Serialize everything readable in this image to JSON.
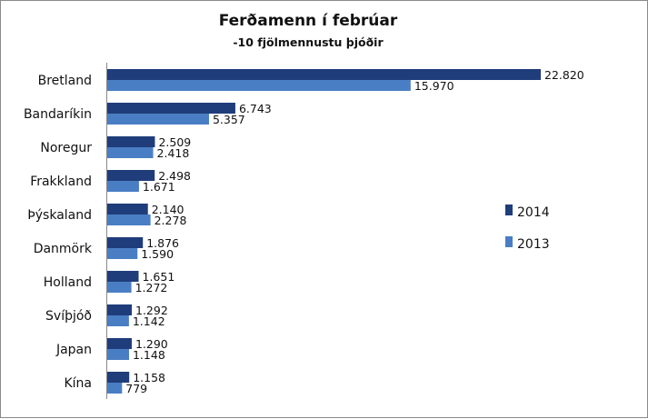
{
  "chart_data": {
    "type": "bar",
    "orientation": "horizontal",
    "title": "Ferðamenn í febrúar",
    "subtitle": "-10 fjölmennustu þjóðir",
    "xlabel": "",
    "ylabel": "",
    "xlim": [
      0,
      25000
    ],
    "grid": false,
    "legend_position": "right",
    "categories": [
      "Bretland",
      "Bandaríkin",
      "Noregur",
      "Frakkland",
      "Þýskaland",
      "Danmörk",
      "Holland",
      "Svíþjóð",
      "Japan",
      "Kína"
    ],
    "series": [
      {
        "name": "2014",
        "color": "#1f3d7a",
        "values": [
          22820,
          6743,
          2509,
          2498,
          2140,
          1876,
          1651,
          1292,
          1290,
          1158
        ],
        "labels": [
          "22.820",
          "6.743",
          "2.509",
          "2.498",
          "2.140",
          "1.876",
          "1.651",
          "1.292",
          "1.290",
          "1.158"
        ]
      },
      {
        "name": "2013",
        "color": "#4a7ec4",
        "values": [
          15970,
          5357,
          2418,
          1671,
          2278,
          1590,
          1272,
          1142,
          1148,
          779
        ],
        "labels": [
          "15.970",
          "5.357",
          "2.418",
          "1.671",
          "2.278",
          "1.590",
          "1.272",
          "1.142",
          "1.148",
          "779"
        ]
      }
    ]
  }
}
